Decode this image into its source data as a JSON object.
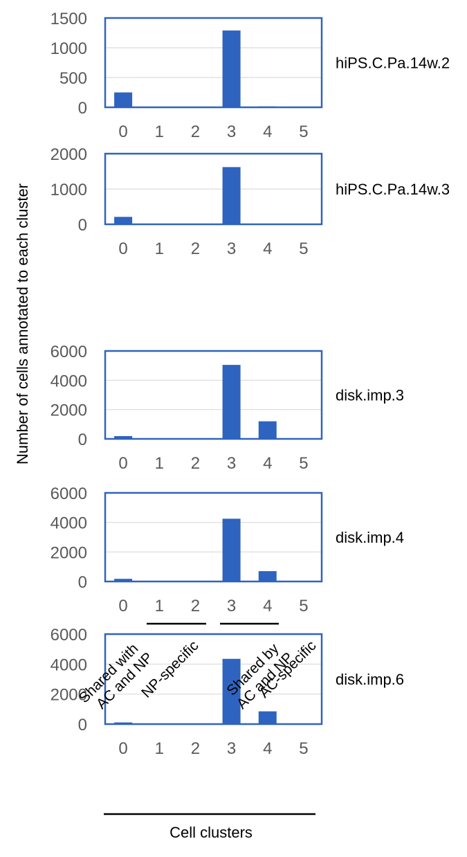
{
  "figure": {
    "y_axis_label": "Number of cells annotated to each cluster",
    "x_axis_label": "Cell clusters",
    "group_labels": [
      [
        "Shared with",
        "AC and NP"
      ],
      [
        "NP-specific"
      ],
      [
        "Shared by",
        "AC and NP"
      ],
      [
        "AC-specific"
      ]
    ],
    "bar_color": "#2e63c0",
    "frame_color": "#2e63c0"
  },
  "chart_data": [
    {
      "type": "bar",
      "title": "hiPS.C.Pa.14w.2",
      "categories": [
        "0",
        "1",
        "2",
        "3",
        "4",
        "5"
      ],
      "values": [
        250,
        2,
        2,
        1290,
        15,
        2
      ],
      "ylim": [
        0,
        1500
      ],
      "yticks": [
        "0",
        "500",
        "1000",
        "1500"
      ],
      "ytick_values": [
        0,
        500,
        1000,
        1500
      ],
      "grid": true
    },
    {
      "type": "bar",
      "title": "hiPS.C.Pa.14w.3",
      "categories": [
        "0",
        "1",
        "2",
        "3",
        "4",
        "5"
      ],
      "values": [
        210,
        2,
        2,
        1620,
        5,
        2
      ],
      "ylim": [
        0,
        2000
      ],
      "yticks": [
        "0",
        "1000",
        "2000"
      ],
      "ytick_values": [
        0,
        1000,
        2000
      ],
      "grid": true
    },
    {
      "type": "bar",
      "title": "disk.imp.3",
      "categories": [
        "0",
        "1",
        "2",
        "3",
        "4",
        "5"
      ],
      "values": [
        190,
        10,
        10,
        5050,
        1200,
        10
      ],
      "ylim": [
        0,
        6000
      ],
      "yticks": [
        "0",
        "2000",
        "4000",
        "6000"
      ],
      "ytick_values": [
        0,
        2000,
        4000,
        6000
      ],
      "grid": true
    },
    {
      "type": "bar",
      "title": "disk.imp.4",
      "categories": [
        "0",
        "1",
        "2",
        "3",
        "4",
        "5"
      ],
      "values": [
        180,
        10,
        10,
        4250,
        700,
        10
      ],
      "ylim": [
        0,
        6000
      ],
      "yticks": [
        "0",
        "2000",
        "4000",
        "6000"
      ],
      "ytick_values": [
        0,
        2000,
        4000,
        6000
      ],
      "grid": true
    },
    {
      "type": "bar",
      "title": "disk.imp.6",
      "categories": [
        "0",
        "1",
        "2",
        "3",
        "4",
        "5"
      ],
      "values": [
        110,
        10,
        10,
        4350,
        850,
        10
      ],
      "ylim": [
        0,
        6000
      ],
      "yticks": [
        "0",
        "2000",
        "4000",
        "6000"
      ],
      "ytick_values": [
        0,
        2000,
        4000,
        6000
      ],
      "grid": true
    }
  ]
}
